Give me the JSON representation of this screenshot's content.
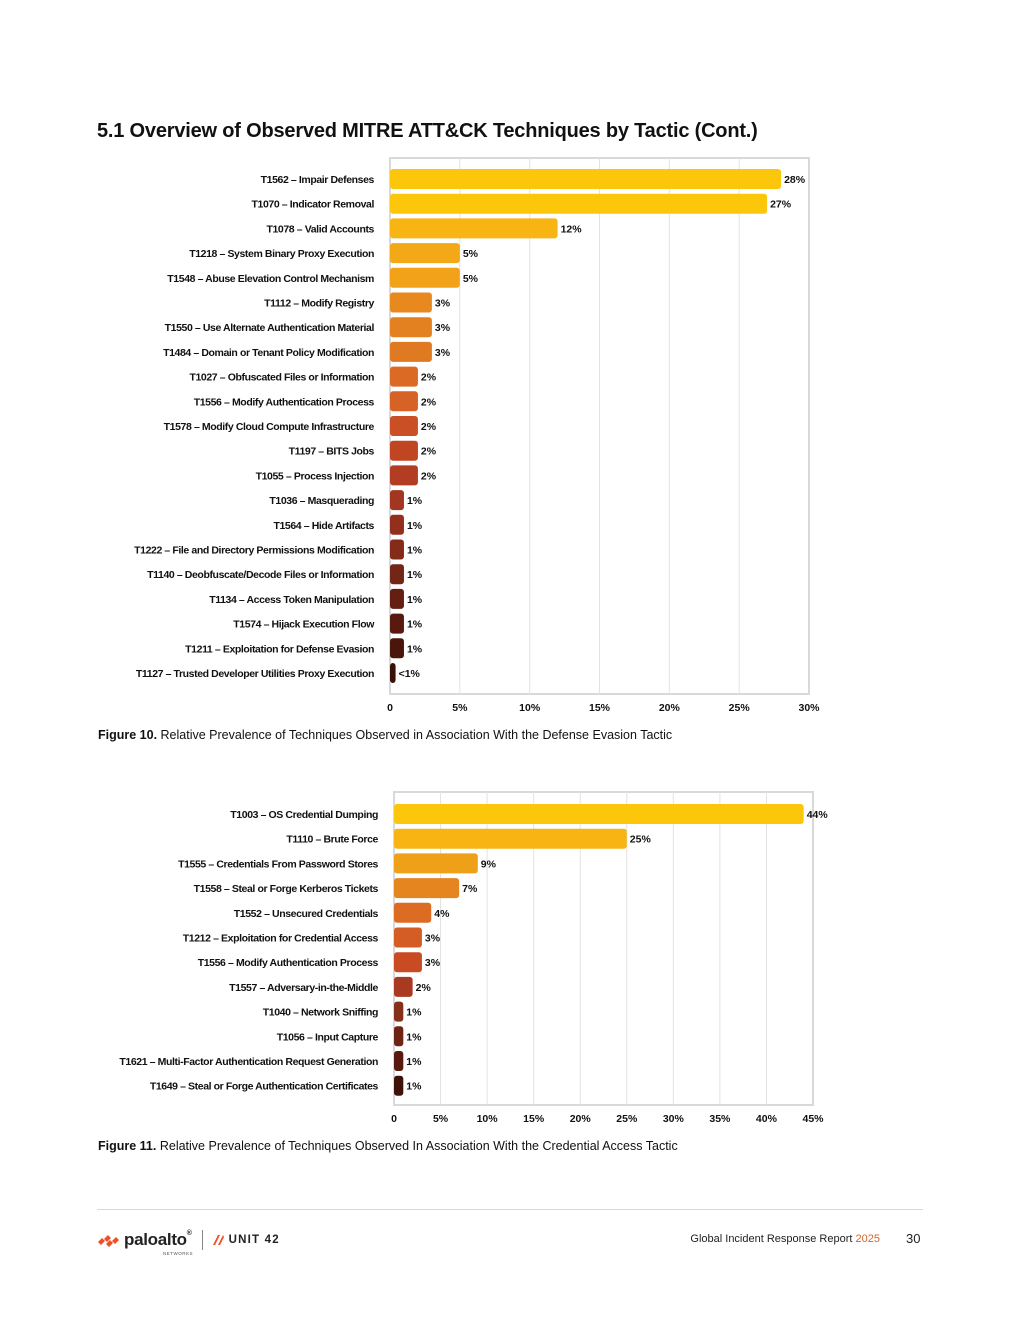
{
  "page": {
    "title": "5.1 Overview of Observed MITRE ATT&CK Techniques by Tactic (Cont.)",
    "figure10": {
      "label": "Figure 10.",
      "text": "Relative Prevalence of Techniques Observed in Association With the Defense Evasion Tactic"
    },
    "figure11": {
      "label": "Figure 11.",
      "text": "Relative Prevalence of Techniques Observed In Association With the Credential Access Tactic"
    },
    "footer": {
      "logo_text": "paloalto",
      "logo_sub": "NETWORKS",
      "logo_unit": "UNIT 42",
      "report": "Global Incident Response Report",
      "year": "2025",
      "page_number": "30"
    }
  },
  "chart_data": [
    {
      "type": "bar",
      "orientation": "horizontal",
      "title": "Figure 10. Relative Prevalence of Techniques Observed in Association With the Defense Evasion Tactic",
      "categories": [
        "T1562 – Impair Defenses",
        "T1070 – Indicator Removal",
        "T1078 – Valid Accounts",
        "T1218 – System Binary Proxy Execution",
        "T1548 – Abuse Elevation Control Mechanism",
        "T1112 – Modify Registry",
        "T1550 – Use Alternate Authentication Material",
        "T1484 – Domain or Tenant Policy Modification",
        "T1027 – Obfuscated Files or Information",
        "T1556 – Modify Authentication Process",
        "T1578 – Modify Cloud Compute Infrastructure",
        "T1197 – BITS Jobs",
        "T1055 – Process Injection",
        "T1036 – Masquerading",
        "T1564 – Hide Artifacts",
        "T1222 – File and Directory Permissions Modification",
        "T1140 – Deobfuscate/Decode Files or Information",
        "T1134 – Access Token Manipulation",
        "T1574 – Hijack Execution Flow",
        "T1211 – Exploitation for Defense Evasion",
        "T1127 – Trusted Developer Utilities Proxy Execution"
      ],
      "values": [
        28,
        27,
        12,
        5,
        5,
        3,
        3,
        3,
        2,
        2,
        2,
        2,
        2,
        1,
        1,
        1,
        1,
        1,
        1,
        1,
        0.4
      ],
      "value_labels": [
        "28%",
        "27%",
        "12%",
        "5%",
        "5%",
        "3%",
        "3%",
        "3%",
        "2%",
        "2%",
        "2%",
        "2%",
        "2%",
        "1%",
        "1%",
        "1%",
        "1%",
        "1%",
        "1%",
        "1%",
        "<1%"
      ],
      "colors": [
        "#fcc70a",
        "#fcc70a",
        "#f7b413",
        "#f3a817",
        "#f2a218",
        "#e7891f",
        "#e38020",
        "#e07a22",
        "#db6b24",
        "#d76225",
        "#cb4f24",
        "#c04523",
        "#b33d23",
        "#a23620",
        "#93301d",
        "#852b1a",
        "#732516",
        "#651f12",
        "#581a0f",
        "#4a150b",
        "#3a1007"
      ],
      "xlim": [
        0,
        30
      ],
      "xticks": [
        0,
        5,
        10,
        15,
        20,
        25,
        30
      ],
      "xtick_labels": [
        "0",
        "5%",
        "10%",
        "15%",
        "20%",
        "25%",
        "30%"
      ],
      "grid": true
    },
    {
      "type": "bar",
      "orientation": "horizontal",
      "title": "Figure 11. Relative Prevalence of Techniques Observed In Association With the Credential Access Tactic",
      "categories": [
        "T1003 – OS Credential Dumping",
        "T1110 – Brute Force",
        "T1555 – Credentials From Password Stores",
        "T1558 – Steal or Forge Kerberos Tickets",
        "T1552 – Unsecured Credentials",
        "T1212 – Exploitation for Credential Access",
        "T1556 – Modify Authentication Process",
        "T1557 – Adversary-in-the-Middle",
        "T1040 – Network Sniffing",
        "T1056 – Input Capture",
        "T1621 – Multi-Factor Authentication Request Generation",
        "T1649 – Steal or Forge Authentication Certificates"
      ],
      "values": [
        44,
        25,
        9,
        7,
        4,
        3,
        3,
        2,
        1,
        1,
        1,
        1
      ],
      "value_labels": [
        "44%",
        "25%",
        "9%",
        "7%",
        "4%",
        "3%",
        "3%",
        "2%",
        "1%",
        "1%",
        "1%",
        "1%"
      ],
      "colors": [
        "#fcc70a",
        "#f7b413",
        "#efa019",
        "#e4851f",
        "#dc6c24",
        "#d35d25",
        "#c84b24",
        "#a93a21",
        "#86301b",
        "#6e2415",
        "#581a0f",
        "#3e1208"
      ],
      "xlim": [
        0,
        45
      ],
      "xticks": [
        0,
        5,
        10,
        15,
        20,
        25,
        30,
        35,
        40,
        45
      ],
      "xtick_labels": [
        "0",
        "5%",
        "10%",
        "15%",
        "20%",
        "25%",
        "30%",
        "35%",
        "40%",
        "45%"
      ],
      "grid": true
    }
  ]
}
